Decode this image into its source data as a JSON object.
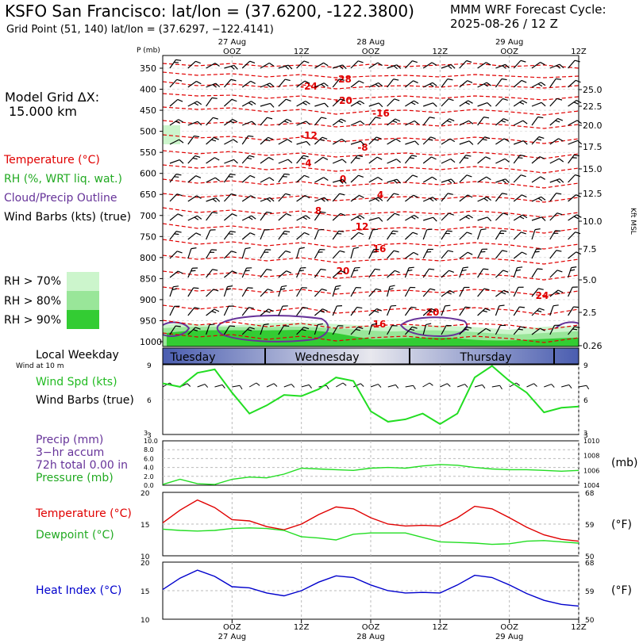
{
  "header": {
    "title": "KSFO San Francisco:  lat/lon = (37.6200, -122.3800)",
    "grid_point": "Grid Point (51, 140) lat/lon = (37.6297, −122.4141)",
    "cycle_line1": "MMM WRF Forecast Cycle:",
    "cycle_line2": "2025-08-26 / 12  Z"
  },
  "left_panel": {
    "grid_label": "Model Grid ΔX:",
    "grid_value": "15.000 km",
    "temperature": "Temperature (°C)",
    "rh": "RH (%, WRT liq. wat.)",
    "cloud": "Cloud/Precip Outline",
    "wind": "Wind Barbs (kts) (true)",
    "rh70": "RH > 70%",
    "rh80": "RH > 80%",
    "rh90": "RH > 90%",
    "local_weekday": "Local Weekday",
    "wind_at_10m": "Wind at 10 m",
    "wind_spd": "Wind Spd (kts)",
    "wind_barbs": "Wind Barbs (true)",
    "precip": "Precip (mm)",
    "precip_accum": "3−hr accum",
    "precip_total": "72h total 0.00 in",
    "pressure": "Pressure (mb)",
    "temp2": "Temperature (°C)",
    "dewpoint": "Dewpoint (°C)",
    "heat_index": "Heat Index (°C)",
    "pressure_unit": "(mb)",
    "f_unit1": "(°F)",
    "f_unit2": "(°F)"
  },
  "colors": {
    "temperature": "#e00000",
    "rh_green": "#22cc22",
    "wind_spd": "#22dd22",
    "cloud": "#663399",
    "heat_index": "#0000cc",
    "rh70": "#ccf5cc",
    "rh80": "#99e699",
    "rh90": "#33cc33"
  },
  "time_axis": {
    "top_dates": [
      "27 Aug",
      "28 Aug",
      "29 Aug"
    ],
    "top_ticks": [
      "OOZ",
      "12Z",
      "OOZ",
      "12Z",
      "OOZ",
      "12Z"
    ],
    "bottom_ticks": [
      "OOZ",
      "12Z",
      "OOZ",
      "12Z",
      "OOZ",
      "12Z"
    ],
    "bottom_dates": [
      "27 Aug",
      "28 Aug",
      "29 Aug"
    ],
    "weekdays": [
      "Tuesday",
      "Wednesday",
      "Thursday"
    ]
  },
  "chart_data": [
    {
      "type": "heatmap",
      "name": "time-height cross section",
      "ylabel": "P (mb)",
      "y_right_label": "Kft MSL",
      "pressure_levels": [
        350,
        400,
        450,
        500,
        550,
        600,
        650,
        700,
        750,
        800,
        850,
        900,
        950,
        1000
      ],
      "height_kft": [
        25.0,
        22.5,
        20.0,
        17.5,
        15.0,
        12.5,
        10.0,
        7.5,
        5.0,
        2.5,
        0.26
      ],
      "isotherm_labels": [
        "-28",
        "-24",
        "-20",
        "-16",
        "-12",
        "-8",
        "-4",
        "0",
        "4",
        "8",
        "12",
        "16",
        "20",
        "24"
      ]
    },
    {
      "type": "line",
      "name": "wind speed",
      "ylim": [
        3,
        9
      ],
      "yticks": [
        9,
        6,
        3
      ],
      "x_hours": [
        0,
        3,
        6,
        9,
        12,
        15,
        18,
        21,
        24,
        27,
        30,
        33,
        36,
        39,
        42,
        45,
        48,
        51,
        54,
        57,
        60,
        63,
        66,
        69,
        72
      ],
      "values": [
        7.4,
        7.1,
        8.3,
        8.6,
        6.6,
        4.8,
        5.5,
        6.4,
        6.3,
        6.9,
        7.9,
        7.6,
        5.0,
        4.1,
        4.3,
        4.8,
        3.9,
        4.8,
        7.9,
        8.9,
        7.6,
        6.6,
        4.9,
        5.3,
        5.4
      ]
    },
    {
      "type": "line",
      "name": "precip and pressure",
      "precip_ylim": [
        0,
        10
      ],
      "precip_ticks": [
        "10.0",
        "8.0",
        "6.0",
        "4.0",
        "2.0",
        "0.0"
      ],
      "pressure_ylim": [
        1004,
        1010
      ],
      "pressure_ticks": [
        1010,
        1008,
        1006,
        1004
      ],
      "x_hours": [
        0,
        3,
        6,
        9,
        12,
        15,
        18,
        21,
        24,
        27,
        30,
        33,
        36,
        39,
        42,
        45,
        48,
        51,
        54,
        57,
        60,
        63,
        66,
        69,
        72
      ],
      "pressure": [
        1004.1,
        1004.8,
        1004.2,
        1004.1,
        1004.8,
        1005.1,
        1005.0,
        1005.5,
        1006.3,
        1006.2,
        1006.1,
        1006.0,
        1006.3,
        1006.4,
        1006.3,
        1006.6,
        1006.8,
        1006.7,
        1006.4,
        1006.2,
        1006.1,
        1006.1,
        1006.0,
        1005.9,
        1006.0
      ],
      "precip": [
        0,
        0,
        0,
        0,
        0,
        0,
        0,
        0,
        0,
        0,
        0,
        0,
        0,
        0,
        0,
        0,
        0,
        0,
        0,
        0,
        0,
        0,
        0,
        0,
        0
      ]
    },
    {
      "type": "line",
      "name": "temperature and dewpoint",
      "ylim": [
        10,
        20
      ],
      "yticks": [
        20,
        15,
        10
      ],
      "y_right_ticks": [
        68,
        59,
        50
      ],
      "x_hours": [
        0,
        3,
        6,
        9,
        12,
        15,
        18,
        21,
        24,
        27,
        30,
        33,
        36,
        39,
        42,
        45,
        48,
        51,
        54,
        57,
        60,
        63,
        66,
        69,
        72
      ],
      "series": [
        {
          "name": "Temperature",
          "values": [
            15.2,
            17.2,
            18.8,
            17.6,
            15.7,
            15.5,
            14.6,
            14.1,
            15.0,
            16.5,
            17.7,
            17.4,
            16.0,
            15.0,
            14.7,
            14.8,
            14.7,
            16.0,
            17.8,
            17.4,
            16.0,
            14.5,
            13.3,
            12.6,
            12.3
          ]
        },
        {
          "name": "Dewpoint",
          "values": [
            14.2,
            14.0,
            13.9,
            14.0,
            14.3,
            14.4,
            14.3,
            14.0,
            13.0,
            12.8,
            12.5,
            13.4,
            13.6,
            13.6,
            13.6,
            12.9,
            12.2,
            12.1,
            12.0,
            11.8,
            11.9,
            12.3,
            12.4,
            12.2,
            12.0
          ]
        }
      ]
    },
    {
      "type": "line",
      "name": "heat index",
      "ylim": [
        10,
        20
      ],
      "yticks": [
        20,
        15,
        10
      ],
      "y_right_ticks": [
        68,
        59,
        50
      ],
      "x_hours": [
        0,
        3,
        6,
        9,
        12,
        15,
        18,
        21,
        24,
        27,
        30,
        33,
        36,
        39,
        42,
        45,
        48,
        51,
        54,
        57,
        60,
        63,
        66,
        69,
        72
      ],
      "values": [
        15.2,
        17.2,
        18.6,
        17.5,
        15.7,
        15.5,
        14.6,
        14.1,
        15.0,
        16.5,
        17.6,
        17.3,
        16.0,
        15.0,
        14.6,
        14.7,
        14.6,
        16.0,
        17.7,
        17.3,
        16.0,
        14.5,
        13.3,
        12.6,
        12.3
      ]
    }
  ]
}
